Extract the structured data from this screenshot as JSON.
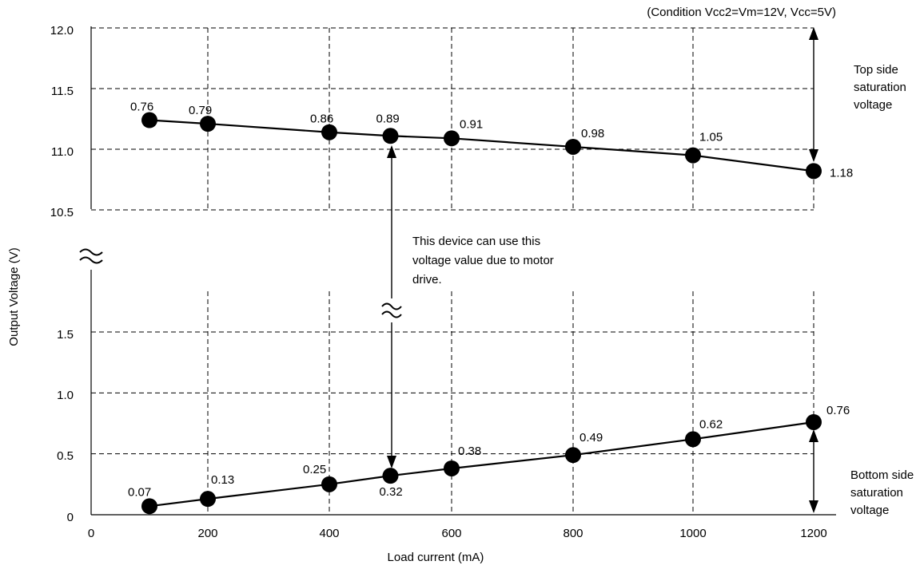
{
  "chart_data": {
    "type": "line",
    "condition": "(Condition Vcc2=Vm=12V, Vcc=5V)",
    "xlabel": "Load current (mA)",
    "ylabel": "Output Voltage (V)",
    "x_tick_labels": [
      "0",
      "200",
      "400",
      "600",
      "800",
      "1000",
      "1200"
    ],
    "y_tick_labels_upper": [
      "12.0",
      "11.5",
      "11.0",
      "10.5"
    ],
    "y_tick_labels_lower": [
      "1.5",
      "1.0",
      "0.5",
      "0"
    ],
    "axis_break_symbol": "≈",
    "x": [
      100,
      200,
      400,
      500,
      600,
      800,
      1000,
      1200
    ],
    "series": [
      {
        "values": [
          11.24,
          11.21,
          11.14,
          11.11,
          11.09,
          11.02,
          10.95,
          10.82
        ],
        "labels": [
          "0.76",
          "0.79",
          "0.86",
          "0.89",
          "0.91",
          "0.98",
          "1.05",
          "1.18"
        ]
      },
      {
        "values": [
          0.07,
          0.13,
          0.25,
          0.32,
          0.38,
          0.49,
          0.62,
          0.76
        ],
        "labels": [
          "0.07",
          "0.13",
          "0.25",
          "0.32",
          "0.38",
          "0.49",
          "0.62",
          "0.76"
        ]
      }
    ],
    "annotations": {
      "top_side": [
        "Top side",
        "saturation",
        "voltage"
      ],
      "bottom_side": [
        "Bottom side",
        "saturation",
        "voltage"
      ],
      "middle": [
        "This device can use this",
        "voltage value due to motor",
        "drive."
      ]
    }
  }
}
